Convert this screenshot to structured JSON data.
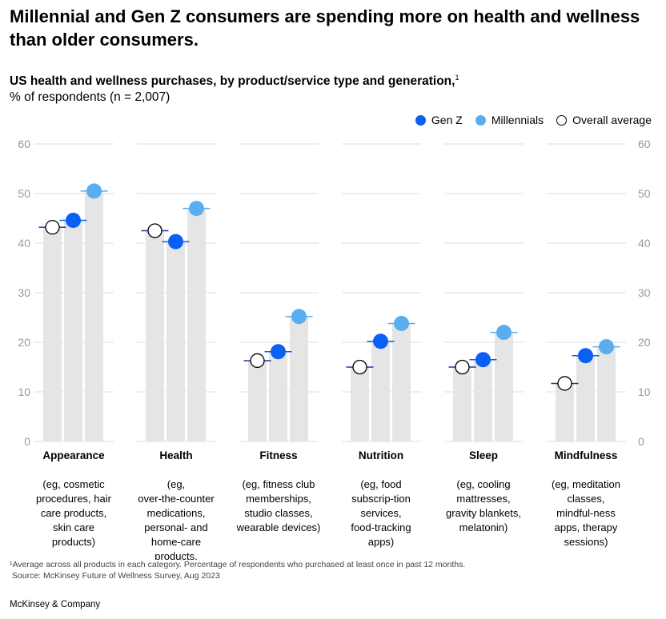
{
  "title": "Millennial and Gen Z consumers are spending more on health and wellness than older consumers.",
  "subtitle": "US health and wellness purchases, by product/service type and generation,",
  "subtitle_sup": "1",
  "unit": "% of respondents (n = 2,007)",
  "legend": [
    {
      "name": "Gen Z",
      "color": "#0a5ff5"
    },
    {
      "name": "Millennials",
      "color": "#5aaef0"
    },
    {
      "name": "Overall average",
      "color": "#ffffff"
    }
  ],
  "footnote": "¹Average across all products in each category. Percentage of respondents who purchased at least once in past 12 months.",
  "source": " Source: McKinsey Future of Wellness Survey, Aug 2023",
  "brand": "McKinsey & Company",
  "chart_data": {
    "type": "dot-bar",
    "ylim": [
      0,
      60
    ],
    "yticks": [
      0,
      10,
      20,
      30,
      40,
      50,
      60
    ],
    "grid": true,
    "legend_position": "top-right",
    "categories": [
      "Appearance",
      "Health",
      "Fitness",
      "Nutrition",
      "Sleep",
      "Mindfulness"
    ],
    "category_notes": [
      "(eg, cosmetic procedures, hair care products, skin care products)",
      "(eg, over-the-counter medications, personal- and home-care products, vitamins)",
      "(eg, fitness club memberships, studio classes, wearable devices)",
      "(eg, food subscrip-tion services, food-tracking apps)",
      "(eg, cooling mattresses, gravity blankets, melatonin)",
      "(eg, meditation classes, mindful-ness apps, therapy sessions)"
    ],
    "series": [
      {
        "name": "Overall average",
        "values": [
          43.2,
          42.5,
          16.3,
          15.0,
          15.0,
          11.7
        ]
      },
      {
        "name": "Gen Z",
        "values": [
          44.6,
          40.3,
          18.1,
          20.2,
          16.5,
          17.3
        ]
      },
      {
        "name": "Millennials",
        "values": [
          50.5,
          47.0,
          25.2,
          23.8,
          22.0,
          19.1
        ]
      }
    ]
  }
}
